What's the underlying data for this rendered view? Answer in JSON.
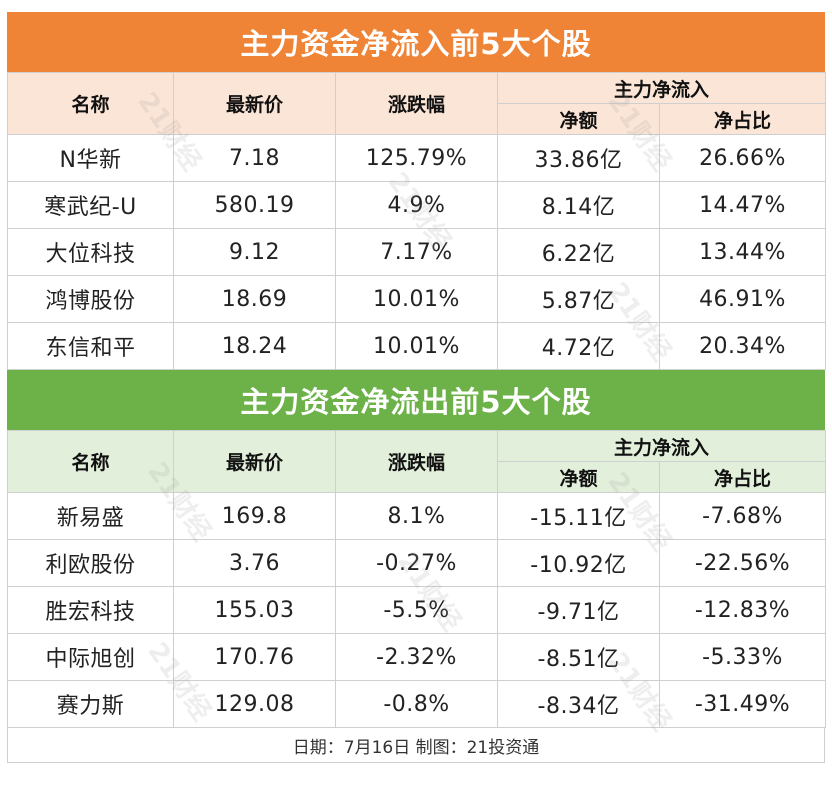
{
  "inflow": {
    "title": "主力资金净流入前5大个股",
    "headers": {
      "name": "名称",
      "price": "最新价",
      "change": "涨跌幅",
      "group": "主力净流入",
      "net_amount": "净额",
      "net_ratio": "净占比"
    },
    "rows": [
      {
        "name": "N华新",
        "price": "7.18",
        "change": "125.79%",
        "net_amount": "33.86亿",
        "net_ratio": "26.66%"
      },
      {
        "name": "寒武纪-U",
        "price": "580.19",
        "change": "4.9%",
        "net_amount": "8.14亿",
        "net_ratio": "14.47%"
      },
      {
        "name": "大位科技",
        "price": "9.12",
        "change": "7.17%",
        "net_amount": "6.22亿",
        "net_ratio": "13.44%"
      },
      {
        "name": "鸿博股份",
        "price": "18.69",
        "change": "10.01%",
        "net_amount": "5.87亿",
        "net_ratio": "46.91%"
      },
      {
        "name": "东信和平",
        "price": "18.24",
        "change": "10.01%",
        "net_amount": "4.72亿",
        "net_ratio": "20.34%"
      }
    ]
  },
  "outflow": {
    "title": "主力资金净流出前5大个股",
    "headers": {
      "name": "名称",
      "price": "最新价",
      "change": "涨跌幅",
      "group": "主力净流入",
      "net_amount": "净额",
      "net_ratio": "净占比"
    },
    "rows": [
      {
        "name": "新易盛",
        "price": "169.8",
        "change": "8.1%",
        "net_amount": "-15.11亿",
        "net_ratio": "-7.68%"
      },
      {
        "name": "利欧股份",
        "price": "3.76",
        "change": "-0.27%",
        "net_amount": "-10.92亿",
        "net_ratio": "-22.56%"
      },
      {
        "name": "胜宏科技",
        "price": "155.03",
        "change": "-5.5%",
        "net_amount": "-9.71亿",
        "net_ratio": "-12.83%"
      },
      {
        "name": "中际旭创",
        "price": "170.76",
        "change": "-2.32%",
        "net_amount": "-8.51亿",
        "net_ratio": "-5.33%"
      },
      {
        "name": "赛力斯",
        "price": "129.08",
        "change": "-0.8%",
        "net_amount": "-8.34亿",
        "net_ratio": "-31.49%"
      }
    ]
  },
  "footer": "日期：7月16日 制图：21投资通",
  "watermark": "21财经",
  "colors": {
    "inflow_banner": "#ef8336",
    "inflow_header": "#fbe5d6",
    "outflow_banner": "#6cb249",
    "outflow_header": "#e2efda"
  }
}
